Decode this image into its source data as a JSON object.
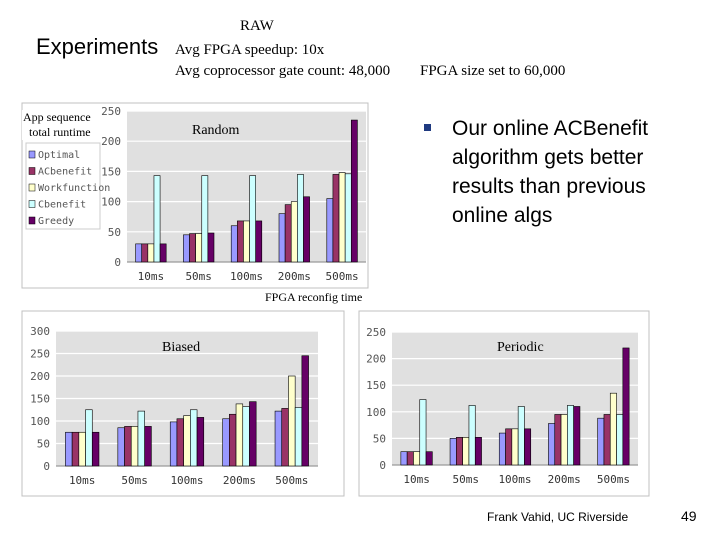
{
  "slide": {
    "title": "Experiments",
    "raw_label": "RAW",
    "speedup_text": "Avg FPGA speedup: 10x",
    "gate_count_text": "Avg coprocessor gate count: 48,000",
    "fpga_size_text": "FPGA size set to 60,000",
    "bullet": "Our online ACBenefit algorithm gets better results than previous online algs",
    "y_note_line1": "App sequence",
    "y_note_line2": "total runtime",
    "x_note": "FPGA reconfig time",
    "footer": "Frank Vahid, UC Riverside",
    "page_number": "49"
  },
  "colors": {
    "Optimal": "#9999ff",
    "ACbenefit": "#993366",
    "Workfunction": "#ffffcc",
    "Cbenefit": "#ccffff",
    "Greedy": "#660066"
  },
  "chart_data": [
    {
      "type": "bar",
      "title": "Random",
      "categories": [
        "10ms",
        "50ms",
        "100ms",
        "200ms",
        "500ms"
      ],
      "ylim": [
        0,
        250
      ],
      "yticks": [
        "0",
        "50",
        "100",
        "150",
        "200",
        "250"
      ],
      "grid": true,
      "legend": "top-left",
      "series": [
        {
          "name": "Optimal",
          "values": [
            30,
            45,
            60,
            80,
            105
          ]
        },
        {
          "name": "ACbenefit",
          "values": [
            30,
            47,
            68,
            95,
            145
          ]
        },
        {
          "name": "Workfunction",
          "values": [
            30,
            47,
            68,
            100,
            148
          ]
        },
        {
          "name": "Cbenefit",
          "values": [
            143,
            143,
            143,
            145,
            146
          ]
        },
        {
          "name": "Greedy",
          "values": [
            30,
            48,
            68,
            108,
            235
          ]
        }
      ]
    },
    {
      "type": "bar",
      "title": "Biased",
      "categories": [
        "10ms",
        "50ms",
        "100ms",
        "200ms",
        "500ms"
      ],
      "ylim": [
        0,
        300
      ],
      "yticks": [
        "0",
        "50",
        "100",
        "150",
        "200",
        "250",
        "300"
      ],
      "grid": true,
      "series": [
        {
          "name": "Optimal",
          "values": [
            75,
            85,
            98,
            105,
            122
          ]
        },
        {
          "name": "ACbenefit",
          "values": [
            75,
            88,
            105,
            115,
            128
          ]
        },
        {
          "name": "Workfunction",
          "values": [
            75,
            88,
            112,
            138,
            200
          ]
        },
        {
          "name": "Cbenefit",
          "values": [
            125,
            122,
            125,
            132,
            130
          ]
        },
        {
          "name": "Greedy",
          "values": [
            75,
            88,
            108,
            143,
            245
          ]
        }
      ]
    },
    {
      "type": "bar",
      "title": "Periodic",
      "categories": [
        "10ms",
        "50ms",
        "100ms",
        "200ms",
        "500ms"
      ],
      "ylim": [
        0,
        250
      ],
      "yticks": [
        "0",
        "50",
        "100",
        "150",
        "200",
        "250"
      ],
      "grid": true,
      "series": [
        {
          "name": "Optimal",
          "values": [
            25,
            50,
            60,
            78,
            88
          ]
        },
        {
          "name": "ACbenefit",
          "values": [
            25,
            52,
            68,
            95,
            95
          ]
        },
        {
          "name": "Workfunction",
          "values": [
            25,
            52,
            68,
            95,
            135
          ]
        },
        {
          "name": "Cbenefit",
          "values": [
            123,
            112,
            110,
            112,
            95
          ]
        },
        {
          "name": "Greedy",
          "values": [
            25,
            52,
            68,
            110,
            220
          ]
        }
      ]
    }
  ]
}
